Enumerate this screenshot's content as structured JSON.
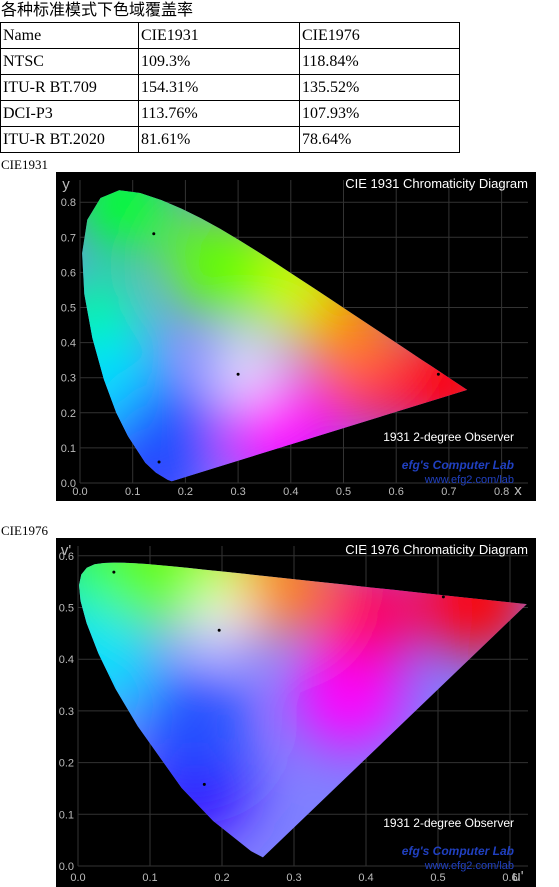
{
  "title": "各种标准模式下色域覆盖率",
  "table": {
    "header": [
      "Name",
      "CIE1931",
      "CIE1976"
    ],
    "rows": [
      [
        "NTSC",
        "109.3%",
        "118.84%"
      ],
      [
        "ITU-R BT.709",
        "154.31%",
        "135.52%"
      ],
      [
        "DCI-P3",
        "113.76%",
        "107.93%"
      ],
      [
        "ITU-R BT.2020",
        "81.61%",
        "78.64%"
      ]
    ]
  },
  "figures": [
    {
      "caption": "CIE1931",
      "title": "CIE 1931 Chromaticity Diagram",
      "observer": "1931 2-degree Observer",
      "credit": "efg's Computer Lab",
      "url": "www.efg2.com/lab",
      "x_label": "x",
      "y_label": "y",
      "xticks": [
        "0.0",
        "0.1",
        "0.2",
        "0.3",
        "0.4",
        "0.5",
        "0.6",
        "0.7",
        "0.8"
      ],
      "yticks": [
        "0.0",
        "0.1",
        "0.2",
        "0.3",
        "0.4",
        "0.5",
        "0.6",
        "0.7",
        "0.8"
      ]
    },
    {
      "caption": "CIE1976",
      "title": "CIE 1976 Chromaticity Diagram",
      "observer": "1931 2-degree Observer",
      "credit": "efg's Computer Lab",
      "url": "www.efg2.com/lab",
      "x_label": "u'",
      "y_label": "v'",
      "xticks": [
        "0.0",
        "0.1",
        "0.2",
        "0.3",
        "0.4",
        "0.5",
        "0.6"
      ],
      "yticks": [
        "0.0",
        "0.1",
        "0.2",
        "0.3",
        "0.4",
        "0.5",
        "0.6"
      ]
    }
  ]
}
